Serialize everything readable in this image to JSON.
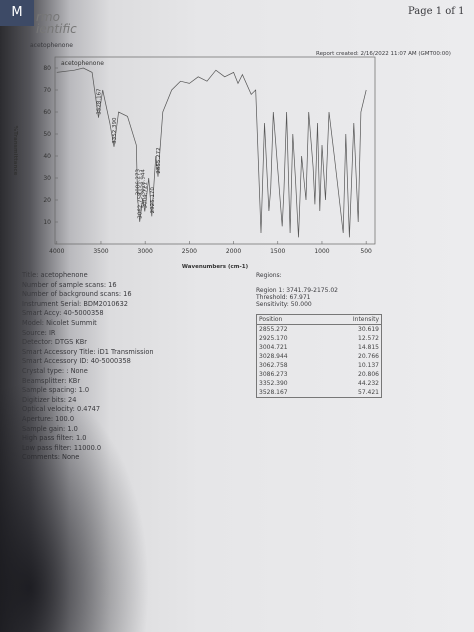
{
  "header": {
    "page": "Page 1 of 1",
    "logo_1": "rmo",
    "logo_2": "ientific",
    "icon": "M",
    "title": "acetophenone",
    "report": "Report created: 2/16/2022 11:07 AM (GMT00:00)"
  },
  "chart_data": {
    "type": "line",
    "label": "acetophenone",
    "xlabel": "Wavenumbers (cm-1)",
    "ylabel": "%Transmittance",
    "color": "#555555",
    "xlim": [
      4020,
      400
    ],
    "ylim": [
      0,
      85
    ],
    "xticks": [
      4000,
      3500,
      3000,
      2500,
      2000,
      1500,
      1000,
      500
    ],
    "yticks": [
      10,
      20,
      30,
      40,
      50,
      60,
      70,
      80
    ],
    "x": [
      4000,
      3800,
      3700,
      3600,
      3528,
      3480,
      3400,
      3352,
      3300,
      3200,
      3100,
      3086,
      3062,
      3028,
      3004,
      2960,
      2925,
      2880,
      2855,
      2800,
      2700,
      2600,
      2500,
      2400,
      2300,
      2200,
      2100,
      2000,
      1950,
      1900,
      1800,
      1750,
      1690,
      1650,
      1600,
      1580,
      1550,
      1450,
      1430,
      1400,
      1360,
      1330,
      1300,
      1265,
      1230,
      1180,
      1150,
      1100,
      1080,
      1050,
      1025,
      1000,
      960,
      920,
      860,
      760,
      730,
      690,
      640,
      590,
      560,
      500
    ],
    "values": [
      78,
      79,
      80,
      78,
      57.4,
      70,
      55,
      44.2,
      60,
      58,
      45,
      20.8,
      10.1,
      20.8,
      14.8,
      30,
      12.6,
      40,
      30.6,
      60,
      70,
      74,
      73,
      76,
      74,
      79,
      76,
      78,
      73,
      77,
      68,
      70,
      5,
      55,
      15,
      25,
      60,
      8,
      25,
      60,
      5,
      50,
      30,
      3,
      40,
      20,
      60,
      35,
      18,
      55,
      15,
      45,
      20,
      60,
      40,
      5,
      50,
      3,
      55,
      10,
      60,
      70
    ]
  },
  "info": [
    "Title: acetophenone",
    "Number of sample scans: 16",
    "Number of background scans: 16",
    "Instrument Serial: BDM2010632",
    "Smart Accy: 40-5000358",
    "Model: Nicolet Summit",
    "Source: IR",
    "Detector: DTGS KBr",
    "Smart Accessory Title: iD1 Transmission",
    "Smart Accessory ID: 40-5000358",
    "Crystal type: : None",
    "Beamsplitter: KBr",
    "Sample spacing: 1.0",
    "Digitizer bits: 24",
    "Optical velocity: 0.4747",
    "Aperture: 100.0",
    "Sample gain: 1.0",
    "High pass filter: 1.0",
    "Low pass filter: 11000.0",
    "Comments: None"
  ],
  "regions": [
    "Regions:",
    "Region 1: 3741.79-2175.02",
    "Threshold: 67.971",
    "Sensitivity: 50.000"
  ],
  "table": {
    "header": [
      "Position",
      "Intensity"
    ],
    "rows": [
      [
        "2855.272",
        "30.619"
      ],
      [
        "2925.170",
        "12.572"
      ],
      [
        "3004.721",
        "14.815"
      ],
      [
        "3028.944",
        "20.766"
      ],
      [
        "3062.758",
        "10.137"
      ],
      [
        "3086.273",
        "20.806"
      ],
      [
        "3352.390",
        "44.232"
      ],
      [
        "3528.167",
        "57.421"
      ]
    ]
  }
}
